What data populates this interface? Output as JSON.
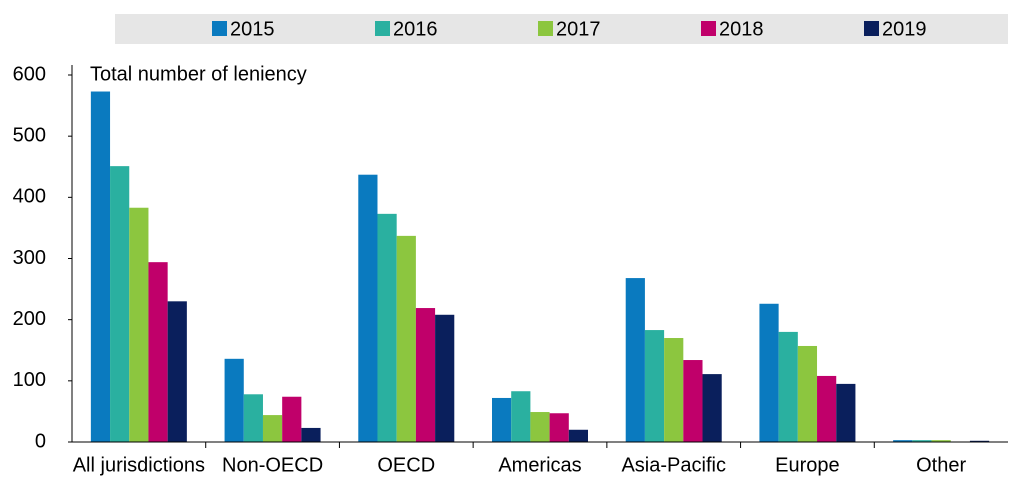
{
  "chart_data": {
    "type": "bar",
    "annotation": "Total number of leniency",
    "categories": [
      "All jurisdictions",
      "Non-OECD",
      "OECD",
      "Americas",
      "Asia-Pacific",
      "Europe",
      "Other"
    ],
    "series": [
      {
        "name": "2015",
        "color": "#0a7abf",
        "values": [
          573,
          136,
          437,
          72,
          268,
          226,
          3
        ]
      },
      {
        "name": "2016",
        "color": "#2ab0a0",
        "values": [
          451,
          78,
          373,
          83,
          183,
          180,
          3
        ]
      },
      {
        "name": "2017",
        "color": "#8cc63f",
        "values": [
          383,
          44,
          337,
          49,
          170,
          157,
          3
        ]
      },
      {
        "name": "2018",
        "color": "#c0006a",
        "values": [
          294,
          74,
          219,
          47,
          134,
          108,
          0
        ]
      },
      {
        "name": "2019",
        "color": "#0a1f5c",
        "values": [
          230,
          23,
          208,
          20,
          111,
          95,
          2
        ]
      }
    ],
    "ylim": [
      0,
      600
    ],
    "yticks": [
      0,
      100,
      200,
      300,
      400,
      500,
      600
    ],
    "grid": false
  }
}
